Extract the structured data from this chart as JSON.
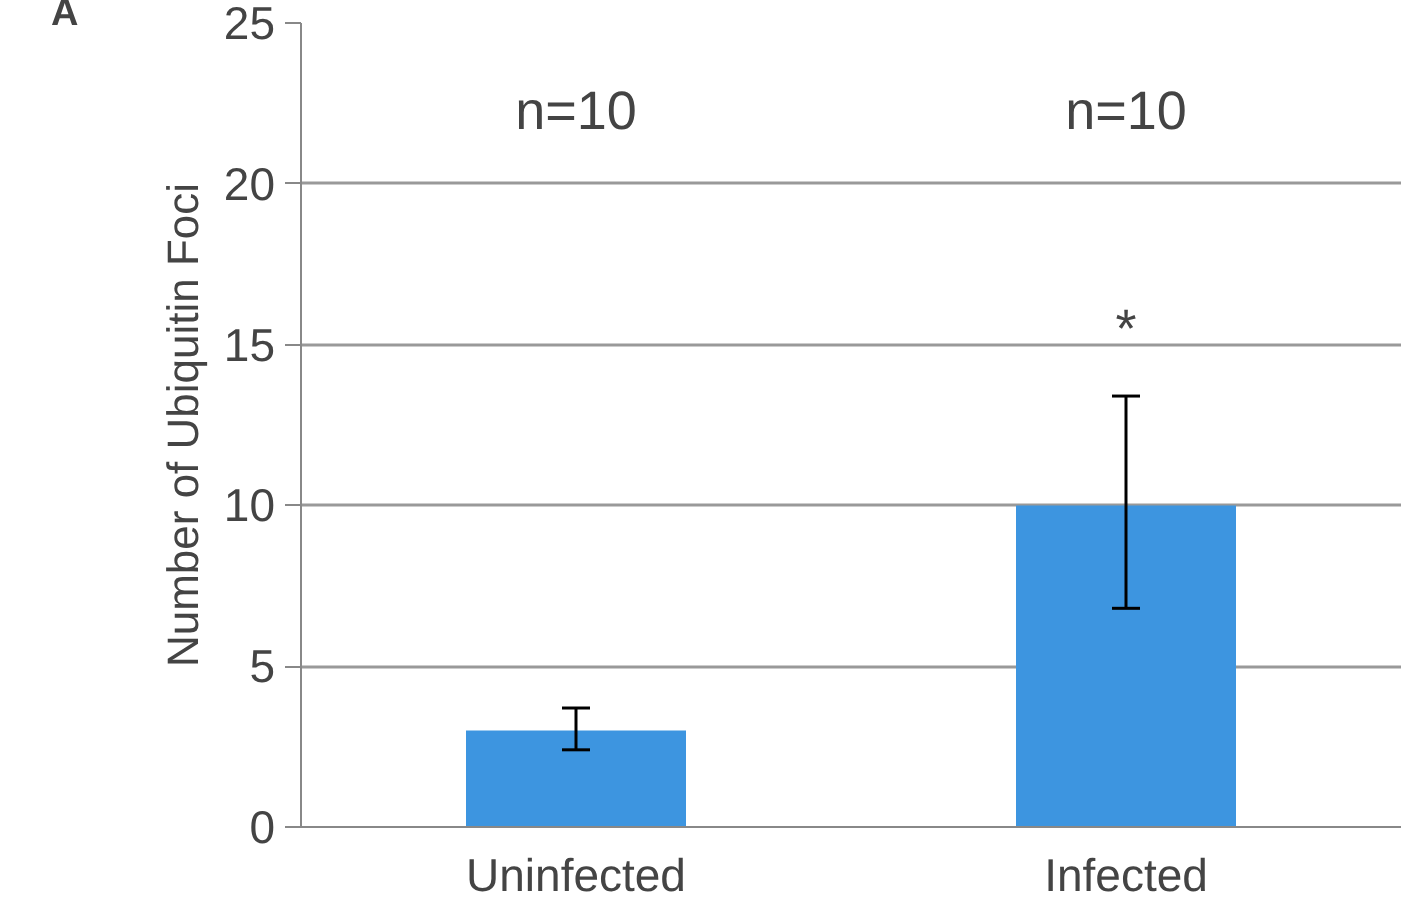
{
  "chart_data": {
    "type": "bar",
    "ylabel": "Number of Ubiquitin Foci",
    "categories": [
      "Uninfected",
      "Infected"
    ],
    "values": [
      3.0,
      10.0
    ],
    "errors": [
      [
        2.4,
        3.7
      ],
      [
        6.8,
        13.4
      ]
    ],
    "color": "#3d95e0",
    "ylim": [
      0,
      25
    ],
    "yticks": [
      0,
      5,
      10,
      15,
      20,
      25
    ],
    "grid": "y",
    "annotations": [
      "A",
      "n=10",
      "n=10",
      "*"
    ]
  }
}
